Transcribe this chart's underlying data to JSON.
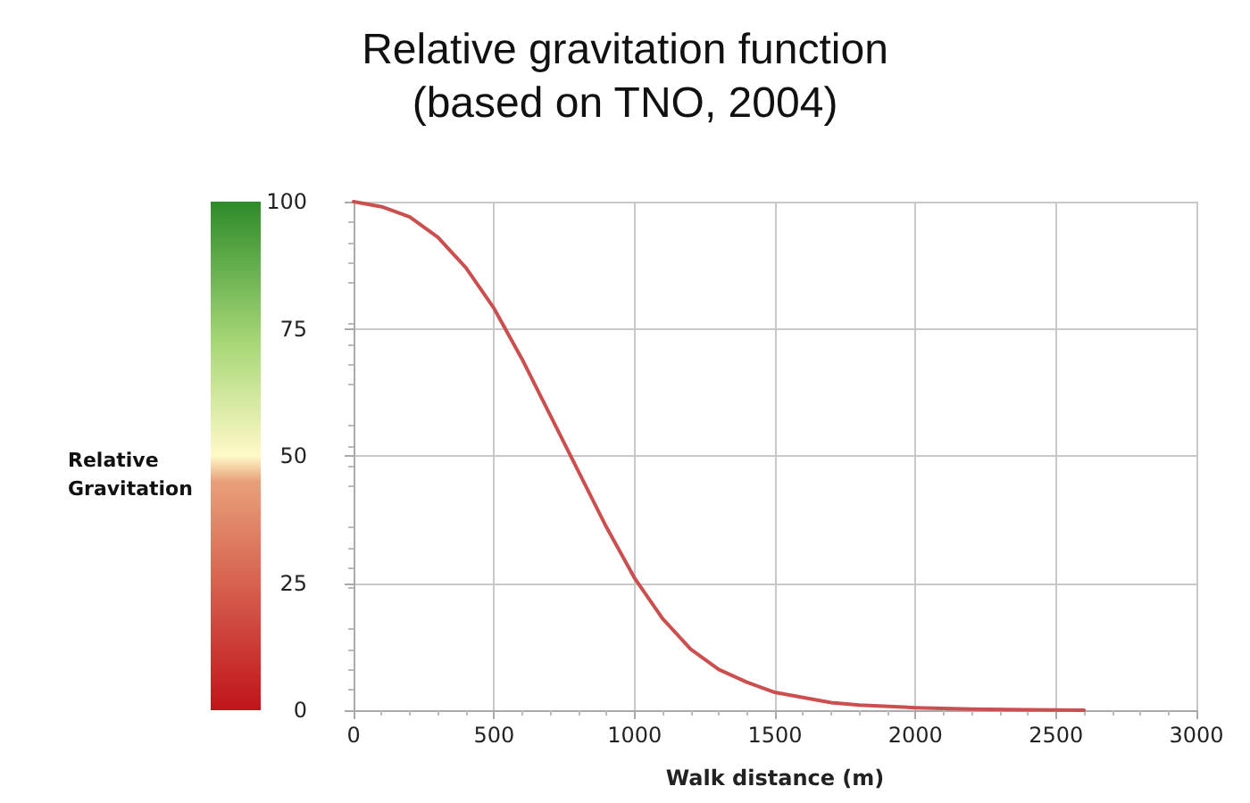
{
  "chart_data": {
    "type": "line",
    "title": "Relative gravitation function\n(based on TNO, 2004)",
    "xlabel": "Walk distance (m)",
    "ylabel": "Relative\nGravitation",
    "x": [
      0,
      100,
      200,
      300,
      400,
      500,
      600,
      700,
      800,
      900,
      1000,
      1100,
      1200,
      1300,
      1400,
      1500,
      1600,
      1700,
      1800,
      2000,
      2200,
      2400,
      2600
    ],
    "series": [
      {
        "color": "#cc4f4f",
        "values": [
          100,
          99,
          97,
          93,
          87,
          79,
          69,
          58,
          47,
          36,
          26,
          18,
          12,
          8,
          5.5,
          3.5,
          2.5,
          1.5,
          1,
          0.5,
          0.2,
          0.1,
          0
        ]
      }
    ],
    "xlim": [
      0,
      3000
    ],
    "xticks": [
      0,
      500,
      1000,
      1500,
      2000,
      2500,
      3000
    ],
    "ylim": [
      0,
      100
    ],
    "yticks": [
      0,
      25,
      50,
      75,
      100
    ],
    "grid": true,
    "marker": "none",
    "line_style": "solid"
  }
}
